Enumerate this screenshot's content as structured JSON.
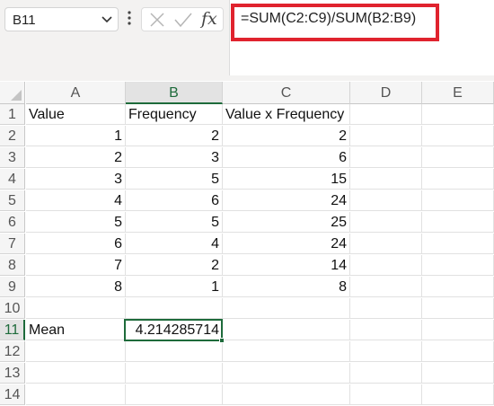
{
  "name_box": {
    "value": "B11"
  },
  "formula_bar": {
    "formula": "=SUM(C2:C9)/SUM(B2:B9)"
  },
  "columns": [
    "A",
    "B",
    "C",
    "D",
    "E"
  ],
  "selected_column": "B",
  "selected_row": "11",
  "rows": [
    {
      "num": "1",
      "a": "Value",
      "b": "Frequency",
      "c": "Value x Frequency"
    },
    {
      "num": "2",
      "a": "1",
      "b": "2",
      "c": "2"
    },
    {
      "num": "3",
      "a": "2",
      "b": "3",
      "c": "6"
    },
    {
      "num": "4",
      "a": "3",
      "b": "5",
      "c": "15"
    },
    {
      "num": "5",
      "a": "4",
      "b": "6",
      "c": "24"
    },
    {
      "num": "6",
      "a": "5",
      "b": "5",
      "c": "25"
    },
    {
      "num": "7",
      "a": "6",
      "b": "4",
      "c": "24"
    },
    {
      "num": "8",
      "a": "7",
      "b": "2",
      "c": "14"
    },
    {
      "num": "9",
      "a": "8",
      "b": "1",
      "c": "8"
    },
    {
      "num": "10",
      "a": "",
      "b": "",
      "c": ""
    },
    {
      "num": "11",
      "a": "Mean",
      "b": "4.214285714",
      "c": ""
    },
    {
      "num": "12",
      "a": "",
      "b": "",
      "c": ""
    },
    {
      "num": "13",
      "a": "",
      "b": "",
      "c": ""
    },
    {
      "num": "14",
      "a": "",
      "b": "",
      "c": ""
    }
  ],
  "colors": {
    "accent": "#1e6b3b",
    "highlight": "#e0232e"
  }
}
